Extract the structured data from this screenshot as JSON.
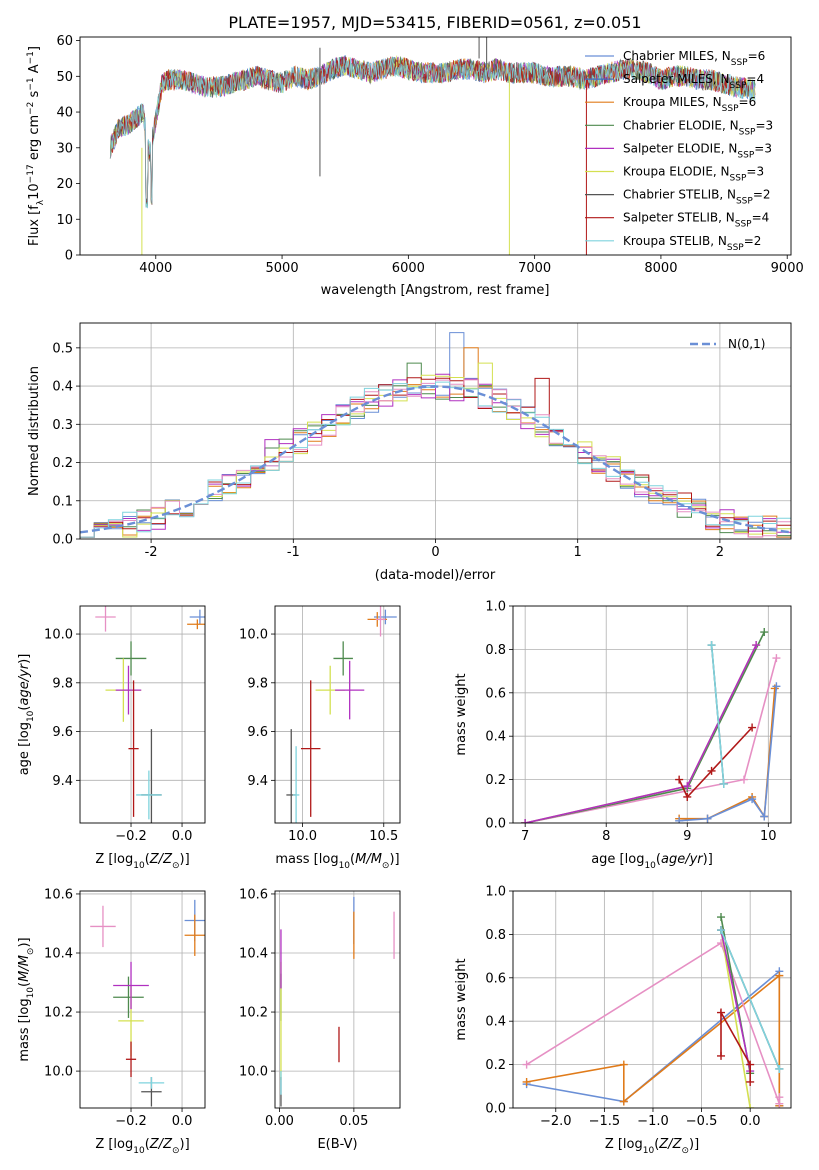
{
  "chart_data": [
    {
      "panel": "spectrum",
      "type": "line",
      "title": "PLATE=1957, MJD=53415, FIBERID=0561, z=0.051",
      "xlabel": "wavelength [Angstrom, rest frame]",
      "ylabel": "Flux [f_λ10^-17 erg cm^-2 s^-1 A^-1]",
      "xlim": [
        3400,
        9030
      ],
      "ylim": [
        0,
        61
      ],
      "xticks": [
        4000,
        5000,
        6000,
        7000,
        8000,
        9000
      ],
      "yticks": [
        0,
        10,
        20,
        30,
        40,
        50,
        60
      ],
      "grid": false,
      "legend_position": "top-right",
      "continuum": {
        "x": [
          3640,
          3700,
          3800,
          3900,
          3950,
          4000,
          4050,
          4100,
          4200,
          4300,
          4400,
          4500,
          4600,
          4700,
          4800,
          4900,
          5000,
          5100,
          5200,
          5300,
          5400,
          5500,
          5600,
          5700,
          5800,
          5900,
          6000,
          6100,
          6200,
          6300,
          6400,
          6500,
          6600,
          6700,
          6800,
          6900,
          7000,
          7100,
          7200,
          7300,
          7400,
          7500,
          7600,
          7700,
          7800,
          7900,
          8000,
          8100,
          8200,
          8300,
          8400,
          8500,
          8600,
          8750
        ],
        "y": [
          30,
          35,
          37,
          40,
          28,
          38,
          48,
          49,
          49,
          48,
          47,
          47,
          48,
          49,
          50,
          49,
          48,
          50,
          49,
          50,
          52,
          53,
          52,
          51,
          52,
          53,
          52,
          51,
          51,
          51,
          52,
          52,
          51,
          52,
          51,
          51,
          51,
          50,
          50,
          50,
          49,
          50,
          51,
          52,
          52,
          51,
          49,
          50,
          50,
          49,
          49,
          48,
          47,
          46
        ]
      },
      "series": [
        {
          "name": "Chabrier MILES, N_SSP=6",
          "color": "#6a8fd6"
        },
        {
          "name": "Salpeter MILES, N_SSP=4",
          "color": "#3f6fc4"
        },
        {
          "name": "Kroupa MILES, N_SSP=6",
          "color": "#e07b1a"
        },
        {
          "name": "Chabrier ELODIE, N_SSP=3",
          "color": "#4e8a4e"
        },
        {
          "name": "Salpeter ELODIE, N_SSP=3",
          "color": "#b030c0"
        },
        {
          "name": "Kroupa ELODIE, N_SSP=3",
          "color": "#d4e050"
        },
        {
          "name": "Chabrier STELIB, N_SSP=2",
          "color": "#555555"
        },
        {
          "name": "Salpeter STELIB, N_SSP=4",
          "color": "#b01818"
        },
        {
          "name": "Kroupa STELIB, N_SSP=2",
          "color": "#7fd3dd"
        }
      ],
      "legend_labels": [
        {
          "pre": "Chabrier MILES, N",
          "sub": "SSP",
          "post": "=6"
        },
        {
          "pre": "Salpeter MILES, N",
          "sub": "SSP",
          "post": "=4"
        },
        {
          "pre": "Kroupa MILES, N",
          "sub": "SSP",
          "post": "=6"
        },
        {
          "pre": "Chabrier ELODIE, N",
          "sub": "SSP",
          "post": "=3"
        },
        {
          "pre": "Salpeter ELODIE, N",
          "sub": "SSP",
          "post": "=3"
        },
        {
          "pre": "Kroupa ELODIE, N",
          "sub": "SSP",
          "post": "=3"
        },
        {
          "pre": "Chabrier STELIB, N",
          "sub": "SSP",
          "post": "=2"
        },
        {
          "pre": "Salpeter STELIB, N",
          "sub": "SSP",
          "post": "=4"
        },
        {
          "pre": "Kroupa STELIB, N",
          "sub": "SSP",
          "post": "=2"
        }
      ]
    },
    {
      "panel": "residual_histogram",
      "type": "line",
      "xlabel": "(data-model)/error",
      "ylabel": "Normed distribution",
      "xlim": [
        -2.5,
        2.5
      ],
      "ylim": [
        0,
        0.565
      ],
      "xticks": [
        -2,
        -1,
        0,
        1,
        2
      ],
      "yticks": [
        0.0,
        0.1,
        0.2,
        0.3,
        0.4,
        0.5
      ],
      "grid": true,
      "legend_position": "top-right",
      "legend_label": "N(0,1)",
      "bin_width": 0.1,
      "reference_curve": {
        "name": "N(0,1)",
        "mean": 0,
        "sigma": 1,
        "color": "#6a8fd6"
      },
      "highlight_bins": {
        "x": [
          0.1,
          0.2,
          -0.2,
          -1.2,
          0.3,
          0.7
        ],
        "y": [
          0.54,
          0.5,
          0.46,
          0.26,
          0.46,
          0.42
        ]
      }
    },
    {
      "panel": "age_vs_Z",
      "type": "scatter",
      "xlabel": "Z [log10(Z/Z_sun)]",
      "ylabel": "age [log10(age/yr)]",
      "xlim": [
        -0.4,
        0.09
      ],
      "ylim": [
        9.225,
        10.115
      ],
      "xticks": [
        -0.2,
        0.0
      ],
      "yticks": [
        9.4,
        9.6,
        9.8,
        10.0
      ],
      "points": [
        {
          "x": 0.07,
          "y": 10.07,
          "xerr": 0.04,
          "yerr": 0.03,
          "color": "#6a8fd6"
        },
        {
          "x": 0.06,
          "y": 10.04,
          "xerr": 0.04,
          "yerr": 0.02,
          "color": "#e07b1a"
        },
        {
          "x": -0.3,
          "y": 10.07,
          "xerr": 0.04,
          "yerr": 0.06,
          "color": "#e690c4"
        },
        {
          "x": -0.2,
          "y": 9.9,
          "xerr": 0.06,
          "yerr": 0.07,
          "color": "#4e8a4e"
        },
        {
          "x": -0.23,
          "y": 9.77,
          "xerr": 0.07,
          "yerr": 0.13,
          "color": "#d4e050"
        },
        {
          "x": -0.21,
          "y": 9.77,
          "xerr": 0.05,
          "yerr": 0.1,
          "color": "#b030c0"
        },
        {
          "x": -0.19,
          "y": 9.53,
          "xerr": 0.02,
          "yerr": 0.28,
          "color": "#b01818"
        },
        {
          "x": -0.12,
          "y": 9.34,
          "xerr": 0.04,
          "yerr": 0.27,
          "color": "#555555"
        },
        {
          "x": -0.13,
          "y": 9.34,
          "xerr": 0.05,
          "yerr": 0.1,
          "color": "#7fd3dd"
        }
      ]
    },
    {
      "panel": "age_vs_mass",
      "type": "scatter",
      "xlabel": "mass [log10(M/M_sun)]",
      "ylabel": "",
      "xlim": [
        9.83,
        10.6
      ],
      "ylim": [
        9.225,
        10.115
      ],
      "xticks": [
        10.0,
        10.5
      ],
      "yticks": [
        9.4,
        9.6,
        9.8,
        10.0
      ],
      "points": [
        {
          "x": 10.51,
          "y": 10.07,
          "xerr": 0.07,
          "yerr": 0.03,
          "color": "#6a8fd6"
        },
        {
          "x": 10.46,
          "y": 10.06,
          "xerr": 0.06,
          "yerr": 0.03,
          "color": "#e07b1a"
        },
        {
          "x": 10.48,
          "y": 10.06,
          "xerr": 0.03,
          "yerr": 0.07,
          "color": "#e690c4"
        },
        {
          "x": 10.25,
          "y": 9.9,
          "xerr": 0.06,
          "yerr": 0.07,
          "color": "#4e8a4e"
        },
        {
          "x": 10.17,
          "y": 9.77,
          "xerr": 0.09,
          "yerr": 0.1,
          "color": "#d4e050"
        },
        {
          "x": 10.29,
          "y": 9.77,
          "xerr": 0.09,
          "yerr": 0.12,
          "color": "#b030c0"
        },
        {
          "x": 10.05,
          "y": 9.53,
          "xerr": 0.06,
          "yerr": 0.28,
          "color": "#b01818"
        },
        {
          "x": 9.93,
          "y": 9.34,
          "xerr": 0.03,
          "yerr": 0.27,
          "color": "#555555"
        },
        {
          "x": 9.96,
          "y": 9.34,
          "xerr": 0.02,
          "yerr": 0.2,
          "color": "#7fd3dd"
        }
      ]
    },
    {
      "panel": "massweight_vs_age",
      "type": "line",
      "xlabel": "age [log10(age/yr)]",
      "ylabel": "mass weight",
      "xlim": [
        6.85,
        10.28
      ],
      "ylim": [
        0,
        1.0
      ],
      "xticks": [
        7,
        8,
        9,
        10
      ],
      "yticks": [
        0.0,
        0.2,
        0.4,
        0.6,
        0.8,
        1.0
      ],
      "grid": true,
      "series": [
        {
          "color": "#e07b1a",
          "x": [
            8.9,
            9.25,
            9.8,
            9.95,
            10.08
          ],
          "y": [
            0.02,
            0.02,
            0.12,
            0.03,
            0.62
          ]
        },
        {
          "color": "#6a8fd6",
          "x": [
            8.9,
            9.25,
            9.8,
            9.95,
            10.1
          ],
          "y": [
            0.01,
            0.02,
            0.11,
            0.03,
            0.63
          ]
        },
        {
          "color": "#e690c4",
          "x": [
            7.0,
            9.7,
            10.1
          ],
          "y": [
            0.0,
            0.2,
            0.76
          ]
        },
        {
          "color": "#4e8a4e",
          "x": [
            7.0,
            9.0,
            9.95
          ],
          "y": [
            0.0,
            0.16,
            0.88
          ]
        },
        {
          "color": "#d4e050",
          "x": [
            7.0,
            9.0,
            9.85
          ],
          "y": [
            0.0,
            0.17,
            0.82
          ]
        },
        {
          "color": "#b030c0",
          "x": [
            7.0,
            9.0,
            9.85
          ],
          "y": [
            0.0,
            0.17,
            0.82
          ]
        },
        {
          "color": "#b01818",
          "x": [
            8.9,
            9.0,
            9.3,
            9.8
          ],
          "y": [
            0.2,
            0.12,
            0.24,
            0.44
          ]
        },
        {
          "color": "#555555",
          "x": [
            9.3,
            9.45
          ],
          "y": [
            0.82,
            0.18
          ]
        },
        {
          "color": "#7fd3dd",
          "x": [
            9.3,
            9.45
          ],
          "y": [
            0.82,
            0.18
          ]
        }
      ]
    },
    {
      "panel": "mass_vs_Z",
      "type": "scatter",
      "xlabel": "Z [log10(Z/Z_sun)]",
      "ylabel": "mass [log10(M/M_sun)]",
      "xlim": [
        -0.4,
        0.09
      ],
      "ylim": [
        9.875,
        10.61
      ],
      "xticks": [
        -0.2,
        0.0
      ],
      "yticks": [
        10.0,
        10.2,
        10.4,
        10.6
      ],
      "points": [
        {
          "x": 0.05,
          "y": 10.51,
          "xerr": 0.04,
          "yerr": 0.07,
          "color": "#6a8fd6"
        },
        {
          "x": 0.05,
          "y": 10.46,
          "xerr": 0.04,
          "yerr": 0.07,
          "color": "#e07b1a"
        },
        {
          "x": -0.31,
          "y": 10.49,
          "xerr": 0.05,
          "yerr": 0.07,
          "color": "#e690c4"
        },
        {
          "x": -0.21,
          "y": 10.25,
          "xerr": 0.06,
          "yerr": 0.07,
          "color": "#4e8a4e"
        },
        {
          "x": -0.2,
          "y": 10.17,
          "xerr": 0.05,
          "yerr": 0.12,
          "color": "#d4e050"
        },
        {
          "x": -0.2,
          "y": 10.29,
          "xerr": 0.07,
          "yerr": 0.08,
          "color": "#b030c0"
        },
        {
          "x": -0.2,
          "y": 10.04,
          "xerr": 0.02,
          "yerr": 0.06,
          "color": "#b01818"
        },
        {
          "x": -0.12,
          "y": 9.93,
          "xerr": 0.04,
          "yerr": 0.05,
          "color": "#555555"
        },
        {
          "x": -0.12,
          "y": 9.96,
          "xerr": 0.05,
          "yerr": 0.02,
          "color": "#7fd3dd"
        }
      ]
    },
    {
      "panel": "mass_vs_EBV",
      "type": "scatter",
      "xlabel": "E(B-V)",
      "ylabel": "",
      "xlim": [
        -0.003,
        0.081
      ],
      "ylim": [
        9.875,
        10.61
      ],
      "xticks": [
        0.0,
        0.05
      ],
      "yticks": [
        10.0,
        10.2,
        10.4,
        10.6
      ],
      "points": [
        {
          "x": 0.05,
          "y": 10.51,
          "xerr": 0,
          "yerr": 0.08,
          "color": "#6a8fd6"
        },
        {
          "x": 0.05,
          "y": 10.46,
          "xerr": 0,
          "yerr": 0.08,
          "color": "#e07b1a"
        },
        {
          "x": 0.077,
          "y": 10.46,
          "xerr": 0,
          "yerr": 0.08,
          "color": "#e690c4"
        },
        {
          "x": 0.001,
          "y": 10.25,
          "xerr": 0,
          "yerr": 0.08,
          "color": "#4e8a4e"
        },
        {
          "x": 0.001,
          "y": 10.17,
          "xerr": 0,
          "yerr": 0.2,
          "color": "#d4e050"
        },
        {
          "x": 0.001,
          "y": 10.38,
          "xerr": 0,
          "yerr": 0.1,
          "color": "#b030c0"
        },
        {
          "x": 0.04,
          "y": 10.09,
          "xerr": 0,
          "yerr": 0.06,
          "color": "#b01818"
        },
        {
          "x": 0.001,
          "y": 9.93,
          "xerr": 0,
          "yerr": 0.05,
          "color": "#555555"
        },
        {
          "x": 0.001,
          "y": 9.96,
          "xerr": 0,
          "yerr": 0.04,
          "color": "#7fd3dd"
        }
      ]
    },
    {
      "panel": "massweight_vs_Z",
      "type": "line",
      "xlabel": "Z [log10(Z/Z_sun)]",
      "ylabel": "mass weight",
      "xlim": [
        -2.44,
        0.42
      ],
      "ylim": [
        0,
        1.0
      ],
      "xticks": [
        -2.0,
        -1.5,
        -1.0,
        -0.5,
        0.0
      ],
      "yticks": [
        0.0,
        0.2,
        0.4,
        0.6,
        0.8,
        1.0
      ],
      "grid": true,
      "series": [
        {
          "color": "#6a8fd6",
          "x": [
            -2.3,
            -1.3,
            0.3,
            0.3
          ],
          "y": [
            0.11,
            0.03,
            0.63,
            0.01
          ]
        },
        {
          "color": "#e07b1a",
          "x": [
            -2.3,
            -1.3,
            -1.3,
            0.3,
            0.3
          ],
          "y": [
            0.12,
            0.2,
            0.03,
            0.61,
            0.01
          ]
        },
        {
          "color": "#e690c4",
          "x": [
            -2.3,
            -0.3,
            0.3,
            0.3
          ],
          "y": [
            0.2,
            0.76,
            0.02,
            0.05
          ]
        },
        {
          "color": "#4e8a4e",
          "x": [
            -0.3,
            0.0
          ],
          "y": [
            0.88,
            0.16
          ]
        },
        {
          "color": "#d4e050",
          "x": [
            -0.3,
            0.0
          ],
          "y": [
            0.82,
            0.0
          ]
        },
        {
          "color": "#b030c0",
          "x": [
            -0.3,
            0.0
          ],
          "y": [
            0.82,
            0.17
          ]
        },
        {
          "color": "#b01818",
          "x": [
            -0.3,
            -0.3,
            0.0,
            0.0
          ],
          "y": [
            0.24,
            0.44,
            0.2,
            0.12
          ]
        },
        {
          "color": "#555555",
          "x": [
            -0.3,
            0.3
          ],
          "y": [
            0.82,
            0.18
          ]
        },
        {
          "color": "#7fd3dd",
          "x": [
            -0.3,
            0.3
          ],
          "y": [
            0.82,
            0.18
          ]
        }
      ]
    }
  ]
}
